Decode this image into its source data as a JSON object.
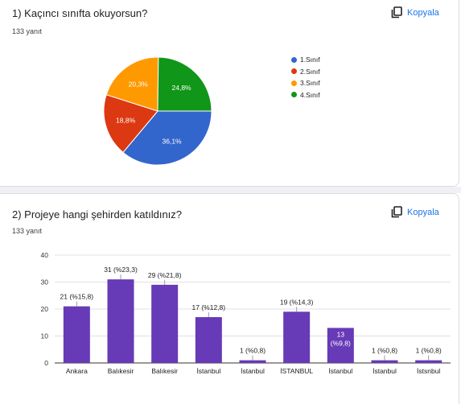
{
  "q1": {
    "title": "1) Kaçıncı sınıfta okuyorsun?",
    "count": "133 yanıt",
    "copy_label": "Kopyala",
    "chart_data": {
      "type": "pie",
      "slices": [
        {
          "label": "1.Sınıf",
          "percent": 36.1,
          "value_label": "36,1%",
          "color": "#3366cc"
        },
        {
          "label": "2.Sınıf",
          "percent": 18.8,
          "value_label": "18,8%",
          "color": "#dc3912"
        },
        {
          "label": "3.Sınıf",
          "percent": 20.3,
          "value_label": "20,3%",
          "color": "#ff9900"
        },
        {
          "label": "4.Sınıf",
          "percent": 24.8,
          "value_label": "24,8%",
          "color": "#109618"
        }
      ],
      "legend_position": "right"
    }
  },
  "q2": {
    "title": "2) Projeye hangi şehirden katıldınız?",
    "count": "133 yanıt",
    "copy_label": "Kopyala",
    "chart_data": {
      "type": "bar",
      "categories": [
        "Ankara",
        "Balıkesir",
        "Balıkesir",
        "İstanbul",
        "İstanbul",
        "İSTANBUL",
        "İstanbul",
        "İstanbul",
        "İstsnbul"
      ],
      "values": [
        21,
        31,
        29,
        17,
        1,
        19,
        13,
        1,
        1
      ],
      "data_labels": [
        "21 (%15,8)",
        "31 (%23,3)",
        "29 (%21,8)",
        "17 (%12,8)",
        "1 (%0,8)",
        "19 (%14,3)",
        "13 (%9,8)",
        "1 (%0,8)",
        "1 (%0,8)"
      ],
      "ylim": [
        0,
        40
      ],
      "yticks": [
        0,
        10,
        20,
        30,
        40
      ],
      "grid": true,
      "bar_color": "#673ab7"
    }
  }
}
